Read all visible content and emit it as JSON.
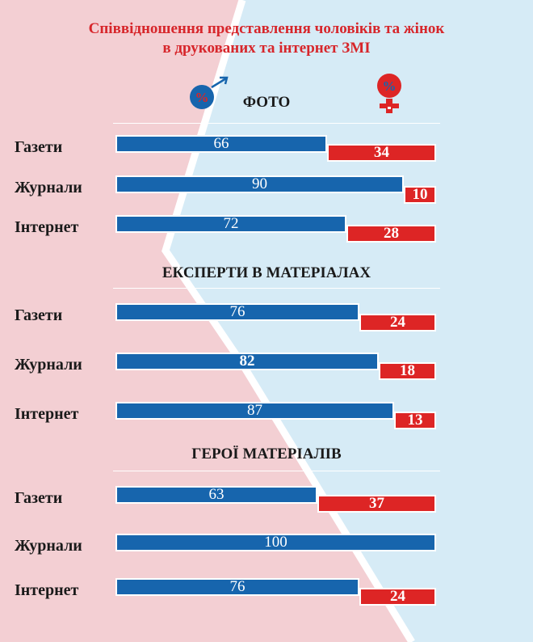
{
  "title_line1": "Співвідношення представлення чоловіків та жінок",
  "title_line2": "в друкованих та інтернет ЗМІ",
  "icons": {
    "male": {
      "name": "male-percent-icon",
      "glyph": "%",
      "color": "#1765ad"
    },
    "female": {
      "name": "female-percent-icon",
      "glyph": "%",
      "color": "#dd2525"
    }
  },
  "colors": {
    "male": "#1765ad",
    "female": "#dd2525",
    "bg_left": "#f3cfd3",
    "bg_right": "#d6ebf6"
  },
  "chart_data": [
    {
      "type": "bar",
      "title": "ФОТО",
      "categories": [
        "Газети",
        "Журнали",
        "Інтернет"
      ],
      "series": [
        {
          "values": [
            66,
            90,
            72
          ]
        },
        {
          "values": [
            34,
            10,
            28
          ]
        }
      ]
    },
    {
      "type": "bar",
      "title": "ЕКСПЕРТИ В МАТЕРІАЛАХ",
      "categories": [
        "Газети",
        "Журнали",
        "Інтернет"
      ],
      "series": [
        {
          "values": [
            76,
            82,
            87
          ]
        },
        {
          "values": [
            24,
            18,
            13
          ]
        }
      ]
    },
    {
      "type": "bar",
      "title": "ГЕРОЇ МАТЕРІАЛІВ",
      "categories": [
        "Газети",
        "Журнали",
        "Інтернет"
      ],
      "series": [
        {
          "values": [
            63,
            100,
            76
          ]
        },
        {
          "values": [
            37,
            0,
            24
          ]
        }
      ]
    }
  ]
}
